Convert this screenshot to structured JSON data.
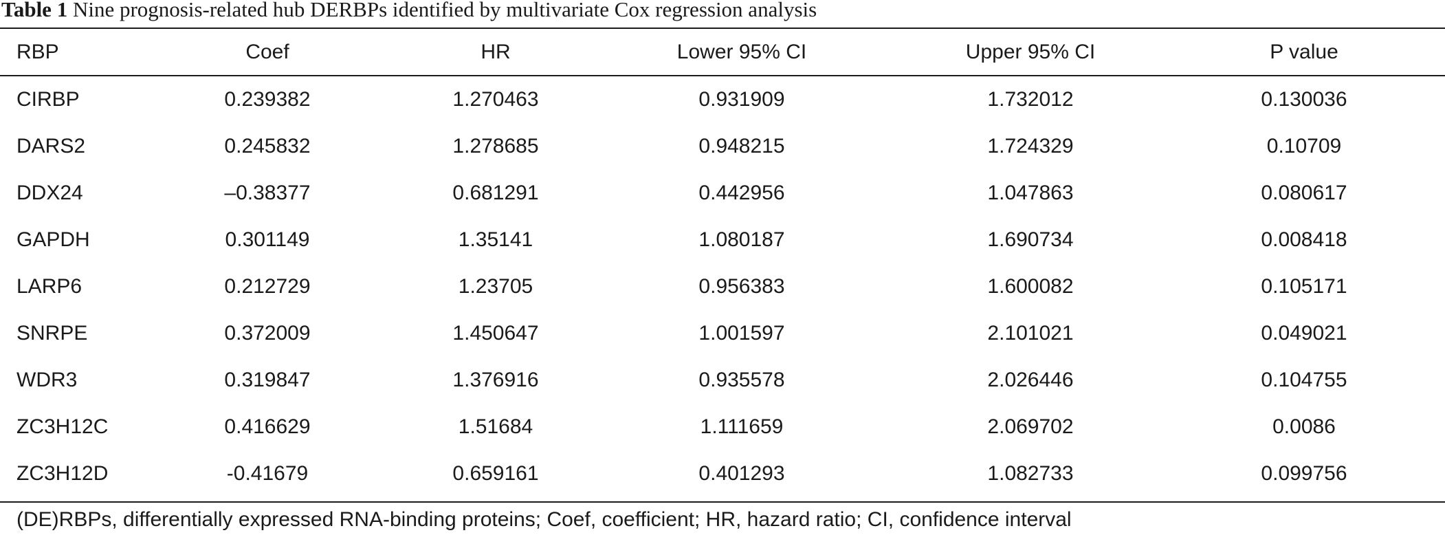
{
  "caption": {
    "label": "Table 1",
    "text": "Nine prognosis-related hub DERBPs identified by multivariate Cox regression analysis"
  },
  "table": {
    "headers": [
      "RBP",
      "Coef",
      "HR",
      "Lower 95% CI",
      "Upper 95% CI",
      "P value"
    ],
    "rows": [
      [
        "CIRBP",
        "0.239382",
        "1.270463",
        "0.931909",
        "1.732012",
        "0.130036"
      ],
      [
        "DARS2",
        "0.245832",
        "1.278685",
        "0.948215",
        "1.724329",
        "0.10709"
      ],
      [
        "DDX24",
        "–0.38377",
        "0.681291",
        "0.442956",
        "1.047863",
        "0.080617"
      ],
      [
        "GAPDH",
        "0.301149",
        "1.35141",
        "1.080187",
        "1.690734",
        "0.008418"
      ],
      [
        "LARP6",
        "0.212729",
        "1.23705",
        "0.956383",
        "1.600082",
        "0.105171"
      ],
      [
        "SNRPE",
        "0.372009",
        "1.450647",
        "1.001597",
        "2.101021",
        "0.049021"
      ],
      [
        "WDR3",
        "0.319847",
        "1.376916",
        "0.935578",
        "2.026446",
        "0.104755"
      ],
      [
        "ZC3H12C",
        "0.416629",
        "1.51684",
        "1.111659",
        "2.069702",
        "0.0086"
      ],
      [
        "ZC3H12D",
        "-0.41679",
        "0.659161",
        "0.401293",
        "1.082733",
        "0.099756"
      ]
    ]
  },
  "footnote": "(DE)RBPs, differentially expressed RNA-binding proteins; Coef, coefficient; HR, hazard ratio; CI, confidence interval"
}
